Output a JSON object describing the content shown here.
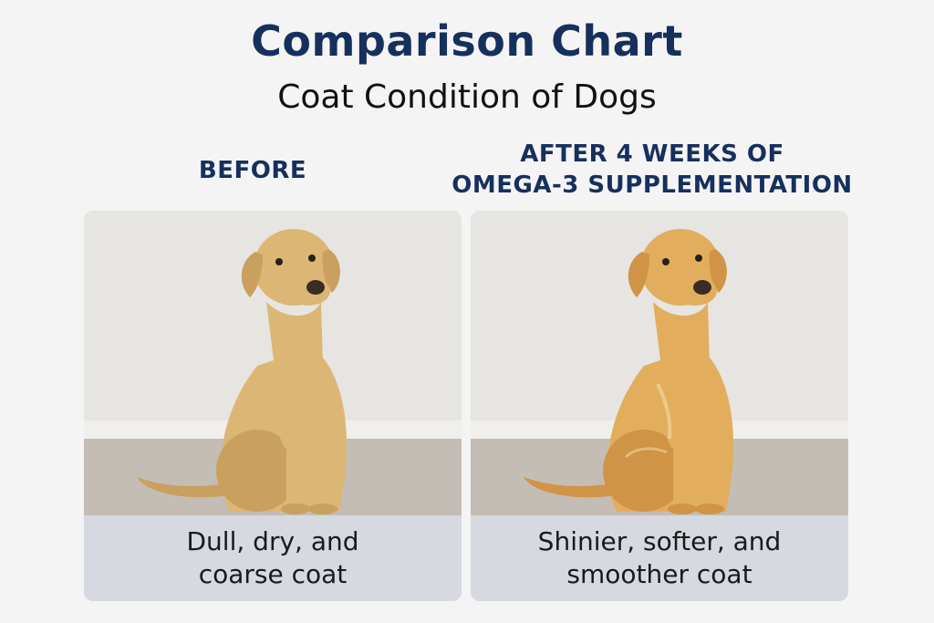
{
  "header": {
    "title": "Comparison Chart",
    "subtitle": "Coat Condition of Dogs"
  },
  "panels": [
    {
      "label_lines": [
        "BEFORE"
      ],
      "caption_lines": [
        "Dull, dry, and",
        "coarse coat"
      ],
      "coat_color": "#dcb674",
      "coat_shade": "#c9a05e"
    },
    {
      "label_lines": [
        "AFTER 4 WEEKS OF",
        "OMEGA-3 SUPPLEMENTATION"
      ],
      "caption_lines": [
        "Shinier, softer, and",
        "smoother coat"
      ],
      "coat_color": "#e2ae5e",
      "coat_shade": "#cf9445"
    }
  ],
  "colors": {
    "title": "#16305e",
    "background": "#f4f4f4",
    "caption_bg": "#d6d9df",
    "wall": "#e7e5e1",
    "floor": "#c3bdb5"
  }
}
